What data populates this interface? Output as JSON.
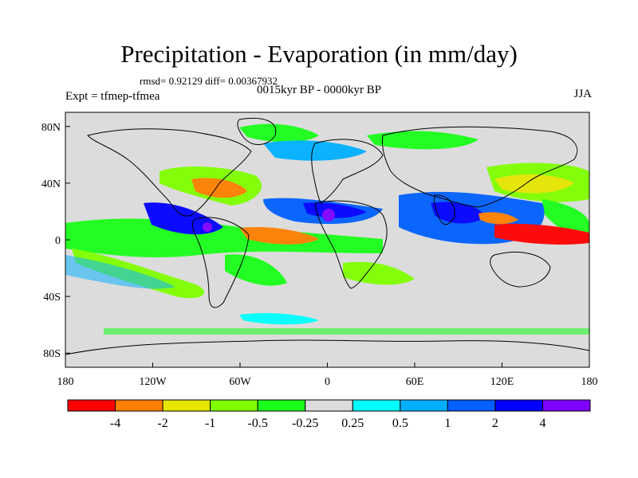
{
  "header": {
    "title": "Precipitation - Evaporation (in mm/day)",
    "stats": "rmsd= 0.92129 diff= 0.00367932",
    "experiment": "Expt = tfmep-tfmea",
    "period": "0015kyr BP - 0000kyr BP",
    "season": "JJA"
  },
  "map": {
    "projection": "cylindrical-equidistant",
    "lon_range": [
      -180,
      180
    ],
    "lat_range": [
      -90,
      90
    ],
    "background_color": "#dcdcdc",
    "coastline_color": "#000000",
    "lat_ticks": [
      {
        "value": 80,
        "label": "80N"
      },
      {
        "value": 40,
        "label": "40N"
      },
      {
        "value": 0,
        "label": "0"
      },
      {
        "value": -40,
        "label": "40S"
      },
      {
        "value": -80,
        "label": "80S"
      }
    ],
    "lon_ticks": [
      {
        "value": -180,
        "label": "180"
      },
      {
        "value": -120,
        "label": "120W"
      },
      {
        "value": -60,
        "label": "60W"
      },
      {
        "value": 0,
        "label": "0"
      },
      {
        "value": 60,
        "label": "60E"
      },
      {
        "value": 120,
        "label": "120E"
      },
      {
        "value": 180,
        "label": "180"
      }
    ]
  },
  "colorbar": {
    "colors": [
      "#ff0000",
      "#ff8000",
      "#e6e600",
      "#80ff00",
      "#1aff1a",
      "#dcdcdc",
      "#00ffff",
      "#00b0ff",
      "#0060ff",
      "#0000ff",
      "#8000ff"
    ],
    "labels": [
      "-4",
      "-2",
      "-1",
      "-0.5",
      "-0.25",
      "0.25",
      "0.5",
      "1",
      "2",
      "4"
    ]
  }
}
